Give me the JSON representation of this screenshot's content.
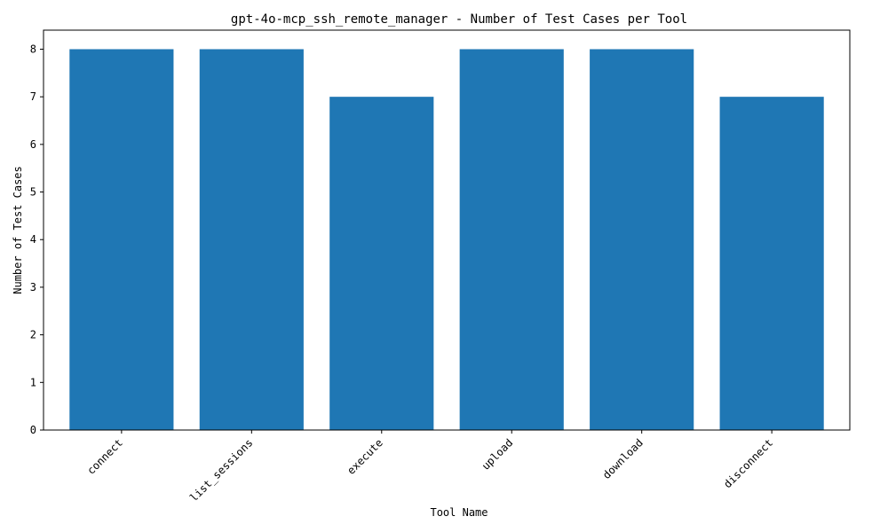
{
  "chart_data": {
    "type": "bar",
    "title": "gpt-4o-mcp_ssh_remote_manager - Number of Test Cases per Tool",
    "xlabel": "Tool Name",
    "ylabel": "Number of Test Cases",
    "categories": [
      "connect",
      "list_sessions",
      "execute",
      "upload",
      "download",
      "disconnect"
    ],
    "values": [
      8,
      8,
      7,
      8,
      8,
      7
    ],
    "yticks": [
      "0",
      "1",
      "2",
      "3",
      "4",
      "5",
      "6",
      "7",
      "8"
    ],
    "ylim": [
      0,
      8.4
    ],
    "grid": false,
    "legend": "none",
    "bar_color": "#1f77b4"
  }
}
